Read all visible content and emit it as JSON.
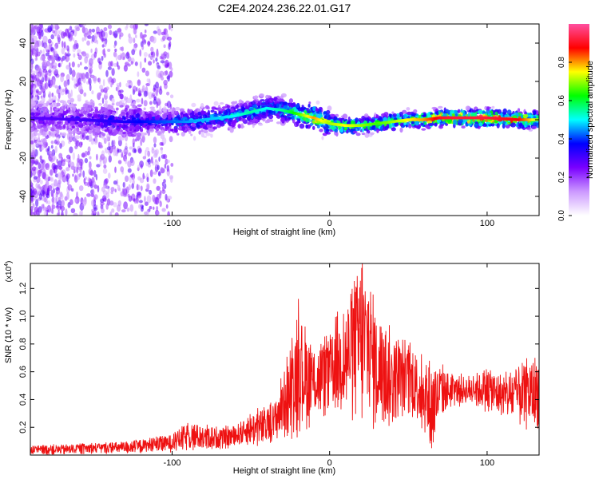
{
  "title": "C2E4.2024.236.22.01.G17",
  "chart_data": [
    {
      "type": "heatmap",
      "xlabel": "Height of straight line (km)",
      "ylabel": "Frequency (Hz)",
      "xlim": [
        -190,
        133
      ],
      "ylim": [
        -50,
        50
      ],
      "xticks": [
        -100,
        0,
        100
      ],
      "yticks": [
        -40,
        -20,
        0,
        20,
        40
      ],
      "colorbar": {
        "label": "Normalized spectral amplitude",
        "range": [
          0,
          1
        ],
        "ticks": [
          0.0,
          0.2,
          0.4,
          0.6,
          0.8
        ],
        "colormap": [
          "#ffffff",
          "#cc99ff",
          "#7a00ff",
          "#0000ff",
          "#00ffff",
          "#00ff00",
          "#ffff00",
          "#ff0000",
          "#ff4fa0"
        ]
      },
      "ridge": {
        "x": [
          -190,
          -160,
          -130,
          -110,
          -90,
          -70,
          -60,
          -50,
          -40,
          -30,
          -20,
          -10,
          0,
          10,
          20,
          30,
          40,
          50,
          60,
          70,
          80,
          100,
          120,
          133
        ],
        "freq": [
          1,
          0,
          -1,
          -1,
          -1,
          1,
          2,
          4,
          6,
          5,
          3,
          1,
          -2,
          -3,
          -3,
          -2,
          -1,
          0,
          0,
          1,
          1,
          1,
          0,
          0
        ],
        "amplitude": [
          0.28,
          0.3,
          0.35,
          0.4,
          0.45,
          0.48,
          0.5,
          0.55,
          0.5,
          0.55,
          0.65,
          0.8,
          0.7,
          0.75,
          0.7,
          0.65,
          0.7,
          0.75,
          0.8,
          0.9,
          0.92,
          0.92,
          0.88,
          0.7
        ]
      },
      "grid": false
    },
    {
      "type": "line",
      "xlabel": "Height of straight line (km)",
      "ylabel": "SNR (10 * v/v)",
      "yscale_label": "(x10",
      "yscale_exponent": "4",
      "xlim": [
        -190,
        133
      ],
      "ylim": [
        0,
        1.38
      ],
      "xticks": [
        -100,
        0,
        100
      ],
      "yticks": [
        0.2,
        0.4,
        0.6,
        0.8,
        1.0,
        1.2
      ],
      "series": [
        {
          "color": "#ee1111",
          "envelope_x": [
            -190,
            -170,
            -150,
            -130,
            -110,
            -100,
            -90,
            -80,
            -70,
            -60,
            -50,
            -40,
            -35,
            -30,
            -25,
            -20,
            -15,
            -10,
            -5,
            0,
            5,
            10,
            15,
            20,
            25,
            30,
            35,
            40,
            45,
            50,
            55,
            60,
            65,
            70,
            75,
            80,
            90,
            100,
            110,
            120,
            133
          ],
          "envelope_low": [
            0.01,
            0.01,
            0.02,
            0.02,
            0.03,
            0.04,
            0.05,
            0.05,
            0.06,
            0.08,
            0.1,
            0.1,
            0.12,
            0.18,
            0.2,
            0.25,
            0.28,
            0.3,
            0.35,
            0.36,
            0.38,
            0.36,
            0.4,
            0.38,
            0.35,
            0.3,
            0.28,
            0.25,
            0.3,
            0.35,
            0.3,
            0.2,
            0.05,
            0.3,
            0.35,
            0.38,
            0.38,
            0.35,
            0.3,
            0.25,
            0.25
          ],
          "envelope_high": [
            0.06,
            0.07,
            0.08,
            0.09,
            0.12,
            0.14,
            0.22,
            0.2,
            0.18,
            0.2,
            0.28,
            0.32,
            0.36,
            0.55,
            0.7,
            1.0,
            0.85,
            0.75,
            0.78,
            0.82,
            0.95,
            1.0,
            1.15,
            1.35,
            1.2,
            0.95,
            0.85,
            0.8,
            0.78,
            0.75,
            0.7,
            0.68,
            0.6,
            0.62,
            0.58,
            0.55,
            0.56,
            0.6,
            0.55,
            0.62,
            0.65
          ]
        }
      ],
      "grid": false
    }
  ]
}
